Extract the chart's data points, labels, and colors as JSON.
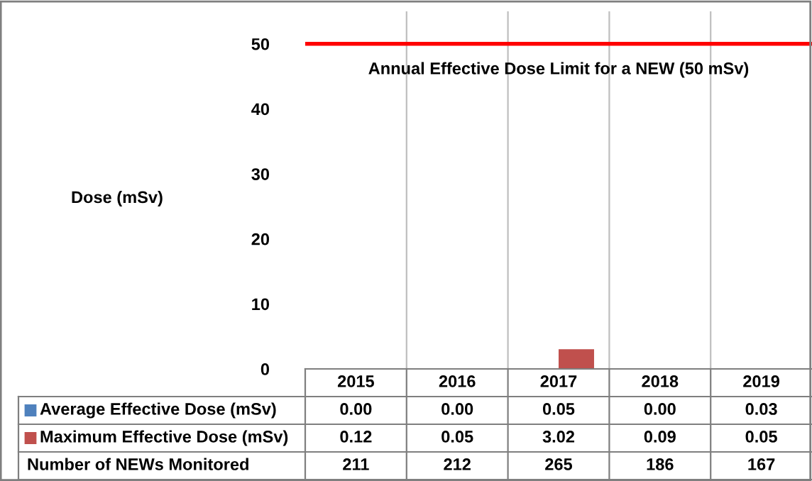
{
  "chart_data": {
    "type": "bar",
    "annotations": [
      "Dose (mSv)",
      "Number of NEWs Monitored",
      "211",
      "212",
      "265",
      "186",
      "167"
    ],
    "categories": [
      "2015",
      "2016",
      "2017",
      "2018",
      "2019"
    ],
    "series": [
      {
        "name": "Average Effective Dose (mSv)",
        "color": "#4f81bd",
        "values": [
          0.0,
          0.0,
          0.05,
          0.0,
          0.03
        ],
        "value_labels": [
          "0.00",
          "0.00",
          "0.05",
          "0.00",
          "0.03"
        ]
      },
      {
        "name": "Maximum Effective Dose (mSv)",
        "color": "#c0504d",
        "values": [
          0.12,
          0.05,
          3.02,
          0.09,
          0.05
        ],
        "value_labels": [
          "0.12",
          "0.05",
          "3.02",
          "0.09",
          "0.05"
        ]
      }
    ],
    "ylim": [
      0,
      55
    ],
    "yticks": [
      0,
      10,
      20,
      30,
      40,
      50
    ],
    "ref_lines": [
      {
        "axis": "y",
        "value": 50,
        "label": "Annual Effective Dose Limit for a NEW (50 mSv)",
        "color": "#ff0000"
      }
    ],
    "grid": false,
    "legend": "bottom"
  }
}
